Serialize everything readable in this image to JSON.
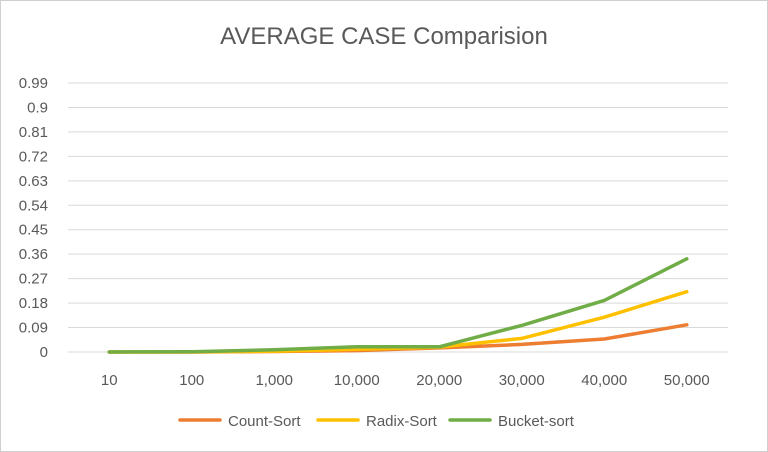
{
  "chart_data": {
    "type": "line",
    "title": "AVERAGE CASE Comparision",
    "xlabel": "",
    "ylabel": "",
    "categories": [
      "10",
      "100",
      "1,000",
      "10,000",
      "20,000",
      "30,000",
      "40,000",
      "50,000"
    ],
    "y_ticks": [
      "0",
      "0.09",
      "0.18",
      "0.27",
      "0.36",
      "0.45",
      "0.54",
      "0.63",
      "0.72",
      "0.81",
      "0.9",
      "0.99"
    ],
    "ylim": [
      0,
      0.99
    ],
    "grid": true,
    "legend_position": "bottom",
    "series": [
      {
        "name": "Count-Sort",
        "color": "#ED7D31",
        "values": [
          0,
          0,
          0.002,
          0.005,
          0.015,
          0.028,
          0.048,
          0.1
        ]
      },
      {
        "name": "Radix-Sort",
        "color": "#FFC000",
        "values": [
          0,
          0,
          0.003,
          0.01,
          0.018,
          0.05,
          0.128,
          0.222
        ]
      },
      {
        "name": "Bucket-sort",
        "color": "#70AD47",
        "values": [
          0,
          0.001,
          0.008,
          0.019,
          0.019,
          0.098,
          0.19,
          0.343
        ]
      }
    ]
  }
}
